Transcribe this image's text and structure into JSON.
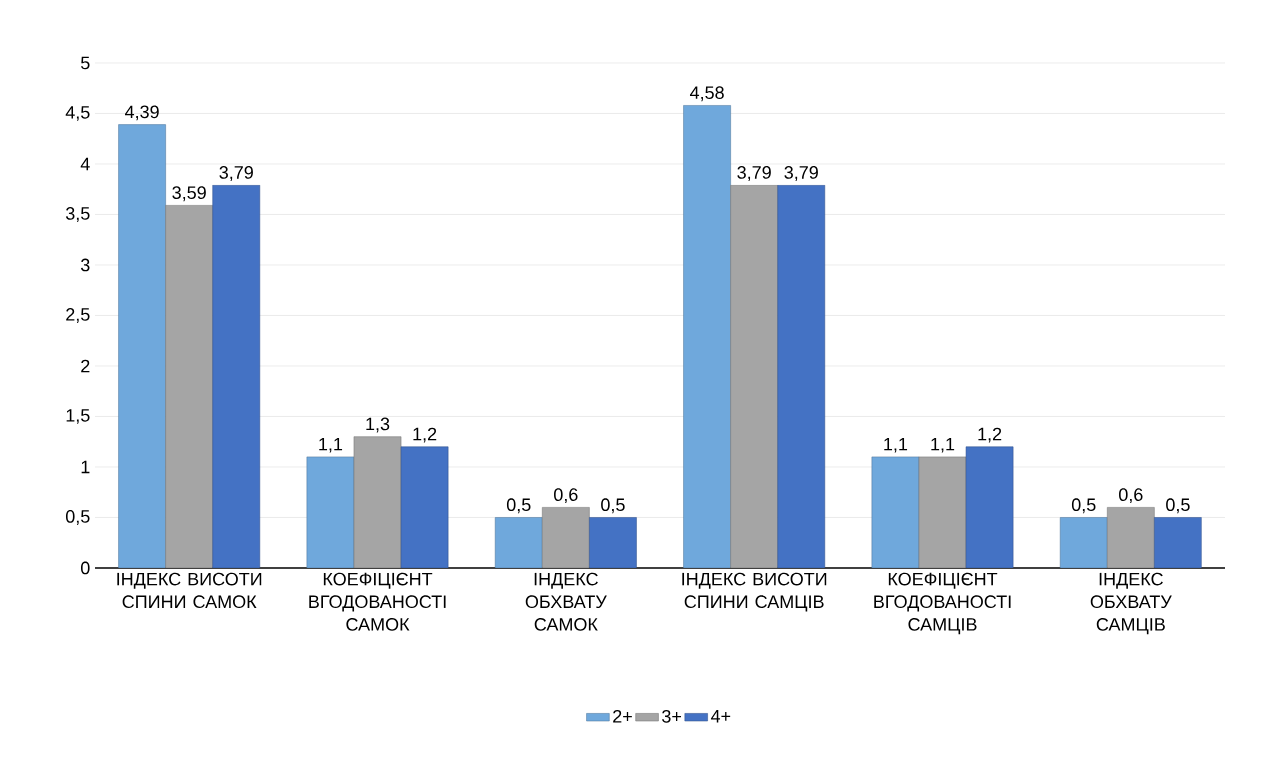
{
  "chart_data": {
    "type": "bar",
    "categories": [
      "ІНДЕКС ВИСОТИ СПИНИ САМОК",
      "КОЕФІЦІЄНТ ВГОДОВАНОСТІ САМОК",
      "ІНДЕКС ОБХВАТУ САМОК",
      "ІНДЕКС ВИСОТИ СПИНИ САМЦІВ",
      "КОЕФІЦІЄНТ ВГОДОВАНОСТІ САМЦІВ",
      "ІНДЕКС ОБХВАТУ САМЦІВ"
    ],
    "series": [
      {
        "name": "2+",
        "color": "#6fa8dc",
        "values": [
          4.39,
          1.1,
          0.5,
          4.58,
          1.1,
          0.5
        ],
        "value_labels": [
          "4,39",
          "1,1",
          "0,5",
          "4,58",
          "1,1",
          "0,5"
        ]
      },
      {
        "name": "3+",
        "color": "#a5a5a5",
        "values": [
          3.59,
          1.3,
          0.6,
          3.79,
          1.1,
          0.6
        ],
        "value_labels": [
          "3,59",
          "1,3",
          "0,6",
          "3,79",
          "1,1",
          "0,6"
        ]
      },
      {
        "name": "4+",
        "color": "#4472c4",
        "values": [
          3.79,
          1.2,
          0.5,
          3.79,
          1.2,
          0.5
        ],
        "value_labels": [
          "3,79",
          "1,2",
          "0,5",
          "3,79",
          "1,2",
          "0,5"
        ]
      }
    ],
    "ylim": [
      0,
      5
    ],
    "yticks": [
      0,
      {
        "value": 0.5,
        "label": "0,5"
      },
      1,
      {
        "value": 1.5,
        "label": "1,5"
      },
      2,
      {
        "value": 2.5,
        "label": "2,5"
      },
      3,
      {
        "value": 3.5,
        "label": "3,5"
      },
      4,
      {
        "value": 4.5,
        "label": "4,5"
      },
      5
    ],
    "grid": "y",
    "legend": "bottom"
  }
}
